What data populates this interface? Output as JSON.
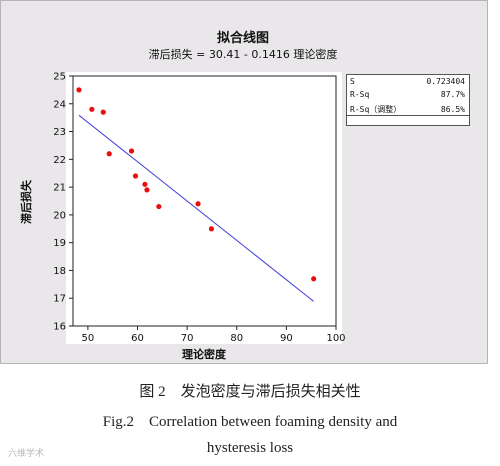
{
  "chart_data": {
    "type": "scatter",
    "title": "拟合线图",
    "subtitle": "滞后损失 = 30.41 - 0.1416 理论密度",
    "xlabel": "理论密度",
    "ylabel": "滞后损失",
    "xlim": [
      47,
      100
    ],
    "ylim": [
      16,
      25
    ],
    "x_ticks": [
      "50",
      "60",
      "70",
      "80",
      "90",
      "100"
    ],
    "y_ticks": [
      "16",
      "17",
      "18",
      "19",
      "20",
      "21",
      "22",
      "23",
      "24",
      "25"
    ],
    "grid": false,
    "points": [
      {
        "x": 48.2,
        "y": 24.5
      },
      {
        "x": 50.8,
        "y": 23.8
      },
      {
        "x": 53.1,
        "y": 23.7
      },
      {
        "x": 54.3,
        "y": 22.2
      },
      {
        "x": 58.8,
        "y": 22.3
      },
      {
        "x": 59.6,
        "y": 21.4
      },
      {
        "x": 61.5,
        "y": 21.1
      },
      {
        "x": 61.9,
        "y": 20.9
      },
      {
        "x": 64.3,
        "y": 20.3
      },
      {
        "x": 72.2,
        "y": 20.4
      },
      {
        "x": 74.9,
        "y": 19.5
      },
      {
        "x": 95.5,
        "y": 17.7
      }
    ],
    "fit_line": {
      "intercept": 30.41,
      "slope": -0.1416,
      "x_range": [
        48.2,
        95.5
      ]
    },
    "point_color": "#e8100f",
    "line_color": "#3c3cd8"
  },
  "stats": [
    {
      "label": "S",
      "value": "0.723404"
    },
    {
      "label": "R-Sq",
      "value": "87.7%"
    },
    {
      "label": "R-Sq（调整）",
      "value": "86.5%"
    }
  ],
  "caption": {
    "zh": "图 2　发泡密度与滞后损失相关性",
    "en_line1": "Fig.2　Correlation between foaming density and",
    "en_line2": "hysteresis loss"
  },
  "watermark": "六维学术"
}
